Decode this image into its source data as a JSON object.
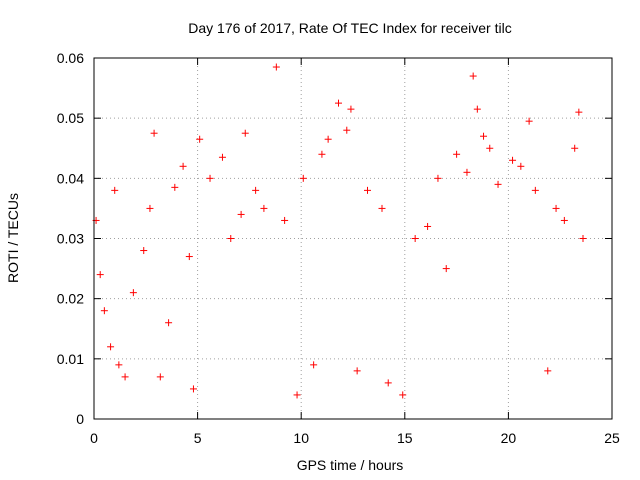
{
  "chart_data": {
    "type": "scatter",
    "title": "Day 176 of 2017, Rate Of TEC Index for receiver tilc",
    "xlabel": "GPS time / hours",
    "ylabel": "ROTI / TECUs",
    "xlim": [
      0,
      25
    ],
    "ylim": [
      0,
      0.06
    ],
    "x_ticks": [
      "0",
      "5",
      "10",
      "15",
      "20",
      "25"
    ],
    "y_ticks": [
      "0",
      "0.01",
      "0.02",
      "0.03",
      "0.04",
      "0.05",
      "0.06"
    ],
    "grid": true,
    "marker": "plus",
    "color": "#ff0000",
    "series": [
      {
        "points": [
          [
            0.1,
            0.033
          ],
          [
            0.3,
            0.024
          ],
          [
            0.5,
            0.018
          ],
          [
            0.8,
            0.012
          ],
          [
            1.0,
            0.038
          ],
          [
            1.2,
            0.009
          ],
          [
            1.5,
            0.007
          ],
          [
            1.9,
            0.021
          ],
          [
            2.4,
            0.028
          ],
          [
            2.7,
            0.035
          ],
          [
            2.9,
            0.0475
          ],
          [
            3.2,
            0.007
          ],
          [
            3.6,
            0.016
          ],
          [
            3.9,
            0.0385
          ],
          [
            4.3,
            0.042
          ],
          [
            4.6,
            0.027
          ],
          [
            4.8,
            0.005
          ],
          [
            5.1,
            0.0465
          ],
          [
            5.6,
            0.04
          ],
          [
            6.2,
            0.0435
          ],
          [
            6.6,
            0.03
          ],
          [
            7.1,
            0.034
          ],
          [
            7.3,
            0.0475
          ],
          [
            7.8,
            0.038
          ],
          [
            8.2,
            0.035
          ],
          [
            8.8,
            0.0585
          ],
          [
            9.2,
            0.033
          ],
          [
            9.8,
            0.004
          ],
          [
            10.1,
            0.04
          ],
          [
            10.6,
            0.009
          ],
          [
            11.0,
            0.044
          ],
          [
            11.3,
            0.0465
          ],
          [
            11.8,
            0.0525
          ],
          [
            12.2,
            0.048
          ],
          [
            12.4,
            0.0515
          ],
          [
            12.7,
            0.008
          ],
          [
            13.2,
            0.038
          ],
          [
            13.9,
            0.035
          ],
          [
            14.2,
            0.006
          ],
          [
            14.9,
            0.004
          ],
          [
            15.5,
            0.03
          ],
          [
            16.1,
            0.032
          ],
          [
            16.6,
            0.04
          ],
          [
            17.0,
            0.025
          ],
          [
            17.5,
            0.044
          ],
          [
            18.0,
            0.041
          ],
          [
            18.3,
            0.057
          ],
          [
            18.5,
            0.0515
          ],
          [
            18.8,
            0.047
          ],
          [
            19.1,
            0.045
          ],
          [
            19.5,
            0.039
          ],
          [
            20.2,
            0.043
          ],
          [
            20.6,
            0.042
          ],
          [
            21.0,
            0.0495
          ],
          [
            21.3,
            0.038
          ],
          [
            21.9,
            0.008
          ],
          [
            22.3,
            0.035
          ],
          [
            22.7,
            0.033
          ],
          [
            23.2,
            0.045
          ],
          [
            23.4,
            0.051
          ],
          [
            23.6,
            0.03
          ]
        ]
      }
    ]
  }
}
